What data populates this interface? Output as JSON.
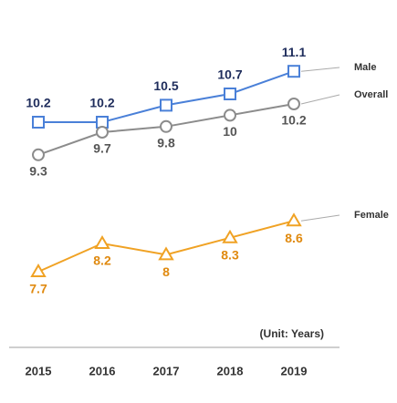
{
  "chart_data": {
    "type": "line",
    "annotation": "(Unit: Years)",
    "categories": [
      "2015",
      "2016",
      "2017",
      "2018",
      "2019"
    ],
    "series": [
      {
        "name": "Male",
        "color": "#4a80d8",
        "marker": "square",
        "values": [
          10.2,
          10.2,
          10.5,
          10.7,
          11.1
        ]
      },
      {
        "name": "Overall",
        "color": "#8c8c8c",
        "marker": "circle",
        "values": [
          9.3,
          9.7,
          9.8,
          10.0,
          10.2
        ]
      },
      {
        "name": "Female",
        "color": "#f0a224",
        "marker": "triangle",
        "values": [
          7.7,
          8.2,
          8.0,
          8.3,
          8.6
        ]
      }
    ]
  }
}
